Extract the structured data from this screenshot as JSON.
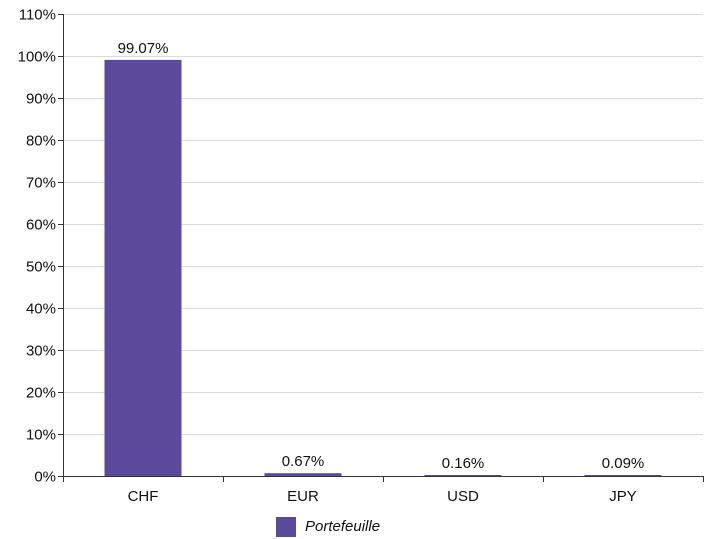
{
  "chart_data": {
    "type": "bar",
    "categories": [
      "CHF",
      "EUR",
      "USD",
      "JPY"
    ],
    "series": [
      {
        "name": "Portefeuille",
        "values": [
          99.07,
          0.67,
          0.16,
          0.09
        ],
        "color": "#5b4a9b"
      }
    ],
    "data_labels": [
      "99.07%",
      "0.67%",
      "0.16%",
      "0.09%"
    ],
    "ylim": [
      0,
      110
    ],
    "yticks": [
      0,
      10,
      20,
      30,
      40,
      50,
      60,
      70,
      80,
      90,
      100,
      110
    ],
    "ytick_labels": [
      "0%",
      "10%",
      "20%",
      "30%",
      "40%",
      "50%",
      "60%",
      "70%",
      "80%",
      "90%",
      "100%",
      "110%"
    ],
    "grid": true,
    "legend_position": "bottom-center",
    "colors": {
      "bar": "#5b4a9b",
      "grid": "#d9d9d9",
      "axis": "#333333"
    }
  }
}
